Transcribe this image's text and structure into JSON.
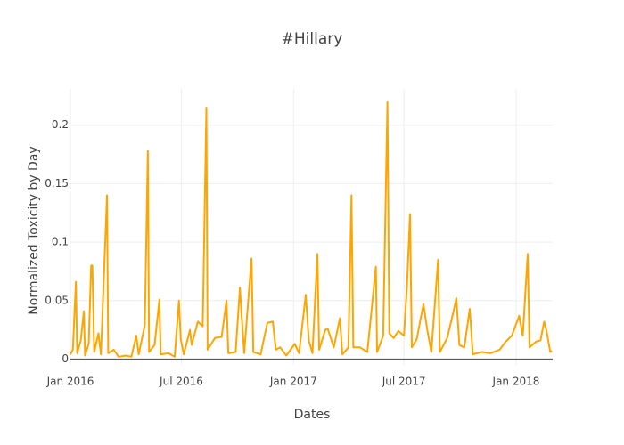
{
  "chart_data": {
    "type": "line",
    "title": "#Hillary",
    "x_label": "Dates",
    "y_label": "Normalized Toxicity by Day",
    "xlim": [
      "2016-01-01",
      "2018-03-02"
    ],
    "xticks": [
      {
        "value": "2016-01-01",
        "label": "Jan 2016"
      },
      {
        "value": "2016-07-01",
        "label": "Jul 2016"
      },
      {
        "value": "2017-01-01",
        "label": "Jan 2017"
      },
      {
        "value": "2017-07-01",
        "label": "Jul 2017"
      },
      {
        "value": "2018-01-01",
        "label": "Jan 2018"
      }
    ],
    "ylim": [
      -0.005,
      0.231
    ],
    "yticks": [
      0,
      0.05,
      0.1,
      0.15,
      0.2
    ],
    "grid": true,
    "x": [
      "2016-01-01",
      "2016-01-05",
      "2016-01-10",
      "2016-01-12",
      "2016-01-18",
      "2016-01-23",
      "2016-01-25",
      "2016-01-31",
      "2016-02-04",
      "2016-02-06",
      "2016-02-09",
      "2016-02-16",
      "2016-02-20",
      "2016-03-01",
      "2016-03-03",
      "2016-03-12",
      "2016-03-20",
      "2016-04-01",
      "2016-04-10",
      "2016-04-18",
      "2016-04-22",
      "2016-05-02",
      "2016-05-07",
      "2016-05-09",
      "2016-05-18",
      "2016-05-26",
      "2016-05-28",
      "2016-06-10",
      "2016-06-20",
      "2016-06-27",
      "2016-06-30",
      "2016-07-05",
      "2016-07-15",
      "2016-07-18",
      "2016-07-28",
      "2016-08-05",
      "2016-08-11",
      "2016-08-13",
      "2016-08-25",
      "2016-09-05",
      "2016-09-13",
      "2016-09-16",
      "2016-09-28",
      "2016-10-05",
      "2016-10-08",
      "2016-10-12",
      "2016-10-24",
      "2016-10-27",
      "2016-11-08",
      "2016-11-19",
      "2016-11-28",
      "2016-12-03",
      "2016-12-10",
      "2016-12-20",
      "2017-01-03",
      "2017-01-10",
      "2017-01-21",
      "2017-01-26",
      "2017-02-01",
      "2017-02-09",
      "2017-02-12",
      "2017-02-22",
      "2017-02-26",
      "2017-03-08",
      "2017-03-18",
      "2017-03-22",
      "2017-04-01",
      "2017-04-06",
      "2017-04-09",
      "2017-04-20",
      "2017-05-02",
      "2017-05-16",
      "2017-05-18",
      "2017-05-28",
      "2017-06-04",
      "2017-06-07",
      "2017-06-14",
      "2017-06-22",
      "2017-07-01",
      "2017-07-06",
      "2017-07-11",
      "2017-07-14",
      "2017-07-22",
      "2017-08-02",
      "2017-08-08",
      "2017-08-15",
      "2017-08-26",
      "2017-08-29",
      "2017-09-10",
      "2017-09-20",
      "2017-09-25",
      "2017-09-30",
      "2017-10-08",
      "2017-10-17",
      "2017-10-22",
      "2017-11-05",
      "2017-11-20",
      "2017-12-05",
      "2017-12-15",
      "2017-12-25",
      "2018-01-06",
      "2018-01-12",
      "2018-01-20",
      "2018-01-23",
      "2018-02-03",
      "2018-02-10",
      "2018-02-16",
      "2018-02-20",
      "2018-02-26",
      "2018-03-01"
    ],
    "series": [
      {
        "name": "#Hillary",
        "color": "#ffa500",
        "values": [
          0.004,
          0.008,
          0.066,
          0.005,
          0.016,
          0.041,
          0.003,
          0.013,
          0.08,
          0.08,
          0.006,
          0.022,
          0.004,
          0.14,
          0.005,
          0.008,
          0.002,
          0.003,
          0.002,
          0.02,
          0.004,
          0.029,
          0.178,
          0.006,
          0.012,
          0.051,
          0.004,
          0.005,
          0.002,
          0.05,
          0.017,
          0.004,
          0.025,
          0.012,
          0.032,
          0.028,
          0.215,
          0.008,
          0.018,
          0.019,
          0.05,
          0.005,
          0.006,
          0.061,
          0.036,
          0.005,
          0.086,
          0.006,
          0.004,
          0.031,
          0.032,
          0.008,
          0.01,
          0.003,
          0.013,
          0.005,
          0.055,
          0.016,
          0.005,
          0.09,
          0.008,
          0.025,
          0.026,
          0.01,
          0.035,
          0.004,
          0.01,
          0.14,
          0.01,
          0.01,
          0.006,
          0.079,
          0.006,
          0.02,
          0.22,
          0.022,
          0.018,
          0.024,
          0.02,
          0.062,
          0.124,
          0.01,
          0.017,
          0.047,
          0.026,
          0.006,
          0.085,
          0.006,
          0.018,
          0.04,
          0.052,
          0.012,
          0.01,
          0.043,
          0.004,
          0.006,
          0.005,
          0.008,
          0.015,
          0.02,
          0.037,
          0.02,
          0.09,
          0.01,
          0.015,
          0.016,
          0.032,
          0.024,
          0.006,
          0.007
        ]
      }
    ]
  }
}
